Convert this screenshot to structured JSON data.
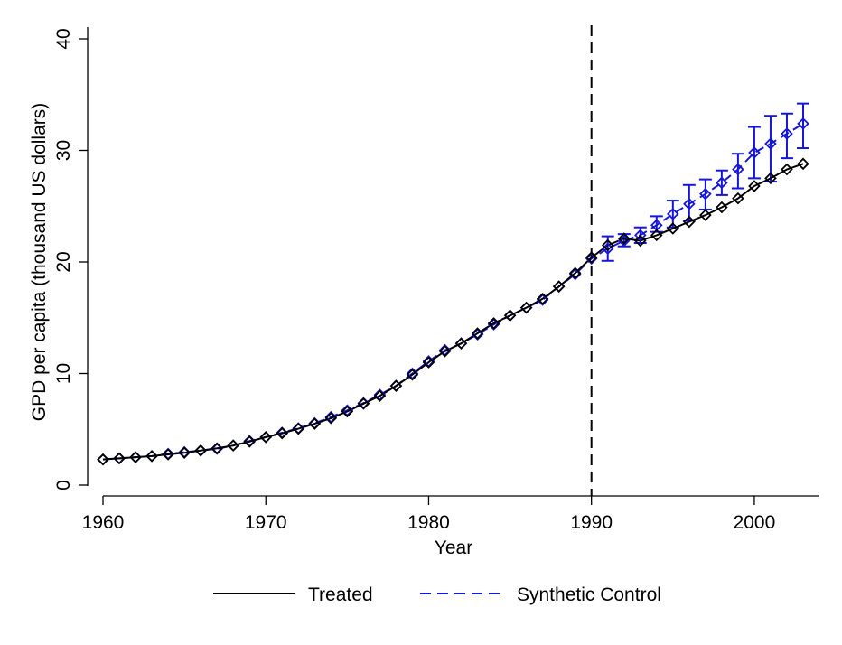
{
  "chart_data": {
    "type": "line",
    "title": "",
    "xlabel": "Year",
    "ylabel": "GPD per capita (thousand US dollars)",
    "xlim": [
      1960,
      2003
    ],
    "ylim": [
      0,
      40
    ],
    "xticks": [
      1960,
      1970,
      1980,
      1990,
      2000
    ],
    "yticks": [
      0,
      10,
      20,
      30,
      40
    ],
    "grid": false,
    "intervention_year": 1990,
    "x": [
      1960,
      1961,
      1962,
      1963,
      1964,
      1965,
      1966,
      1967,
      1968,
      1969,
      1970,
      1971,
      1972,
      1973,
      1974,
      1975,
      1976,
      1977,
      1978,
      1979,
      1980,
      1981,
      1982,
      1983,
      1984,
      1985,
      1986,
      1987,
      1988,
      1989,
      1990,
      1991,
      1992,
      1993,
      1994,
      1995,
      1996,
      1997,
      1998,
      1999,
      2000,
      2001,
      2002,
      2003
    ],
    "series": [
      {
        "name": "Treated",
        "color": "#000000",
        "style": "solid",
        "values": [
          2.3,
          2.4,
          2.5,
          2.6,
          2.75,
          2.9,
          3.1,
          3.3,
          3.55,
          3.9,
          4.3,
          4.65,
          5.05,
          5.5,
          6.0,
          6.6,
          7.3,
          8.0,
          8.9,
          9.9,
          11.0,
          12.0,
          12.7,
          13.6,
          14.5,
          15.2,
          15.9,
          16.7,
          17.8,
          19.0,
          20.4,
          21.5,
          22.1,
          21.9,
          22.4,
          23.0,
          23.6,
          24.2,
          24.9,
          25.7,
          26.8,
          27.5,
          28.3,
          28.8
        ]
      },
      {
        "name": "Synthetic Control",
        "color": "#1616d9",
        "style": "dashed",
        "values": [
          2.3,
          2.4,
          2.5,
          2.6,
          2.8,
          2.95,
          3.1,
          3.25,
          3.55,
          3.95,
          4.3,
          4.7,
          5.1,
          5.55,
          6.1,
          6.7,
          7.35,
          8.1,
          8.9,
          10.0,
          11.1,
          12.1,
          12.7,
          13.5,
          14.4,
          15.2,
          15.9,
          16.6,
          17.8,
          18.9,
          20.3,
          21.2,
          21.9,
          22.4,
          23.3,
          24.3,
          25.2,
          26.1,
          27.1,
          28.3,
          29.8,
          30.6,
          31.5,
          32.4
        ],
        "errors": {
          "start_year": 1991,
          "lower": [
            20.1,
            21.4,
            21.7,
            22.7,
            23.1,
            23.7,
            24.7,
            26.0,
            26.6,
            27.5,
            27.2,
            29.3,
            30.2
          ],
          "upper": [
            22.3,
            22.5,
            23.1,
            24.1,
            25.5,
            26.9,
            27.4,
            28.2,
            29.7,
            32.1,
            33.1,
            33.3,
            34.2
          ]
        }
      }
    ],
    "legend": [
      "Treated",
      "Synthetic Control"
    ],
    "legend_position": "bottom"
  }
}
